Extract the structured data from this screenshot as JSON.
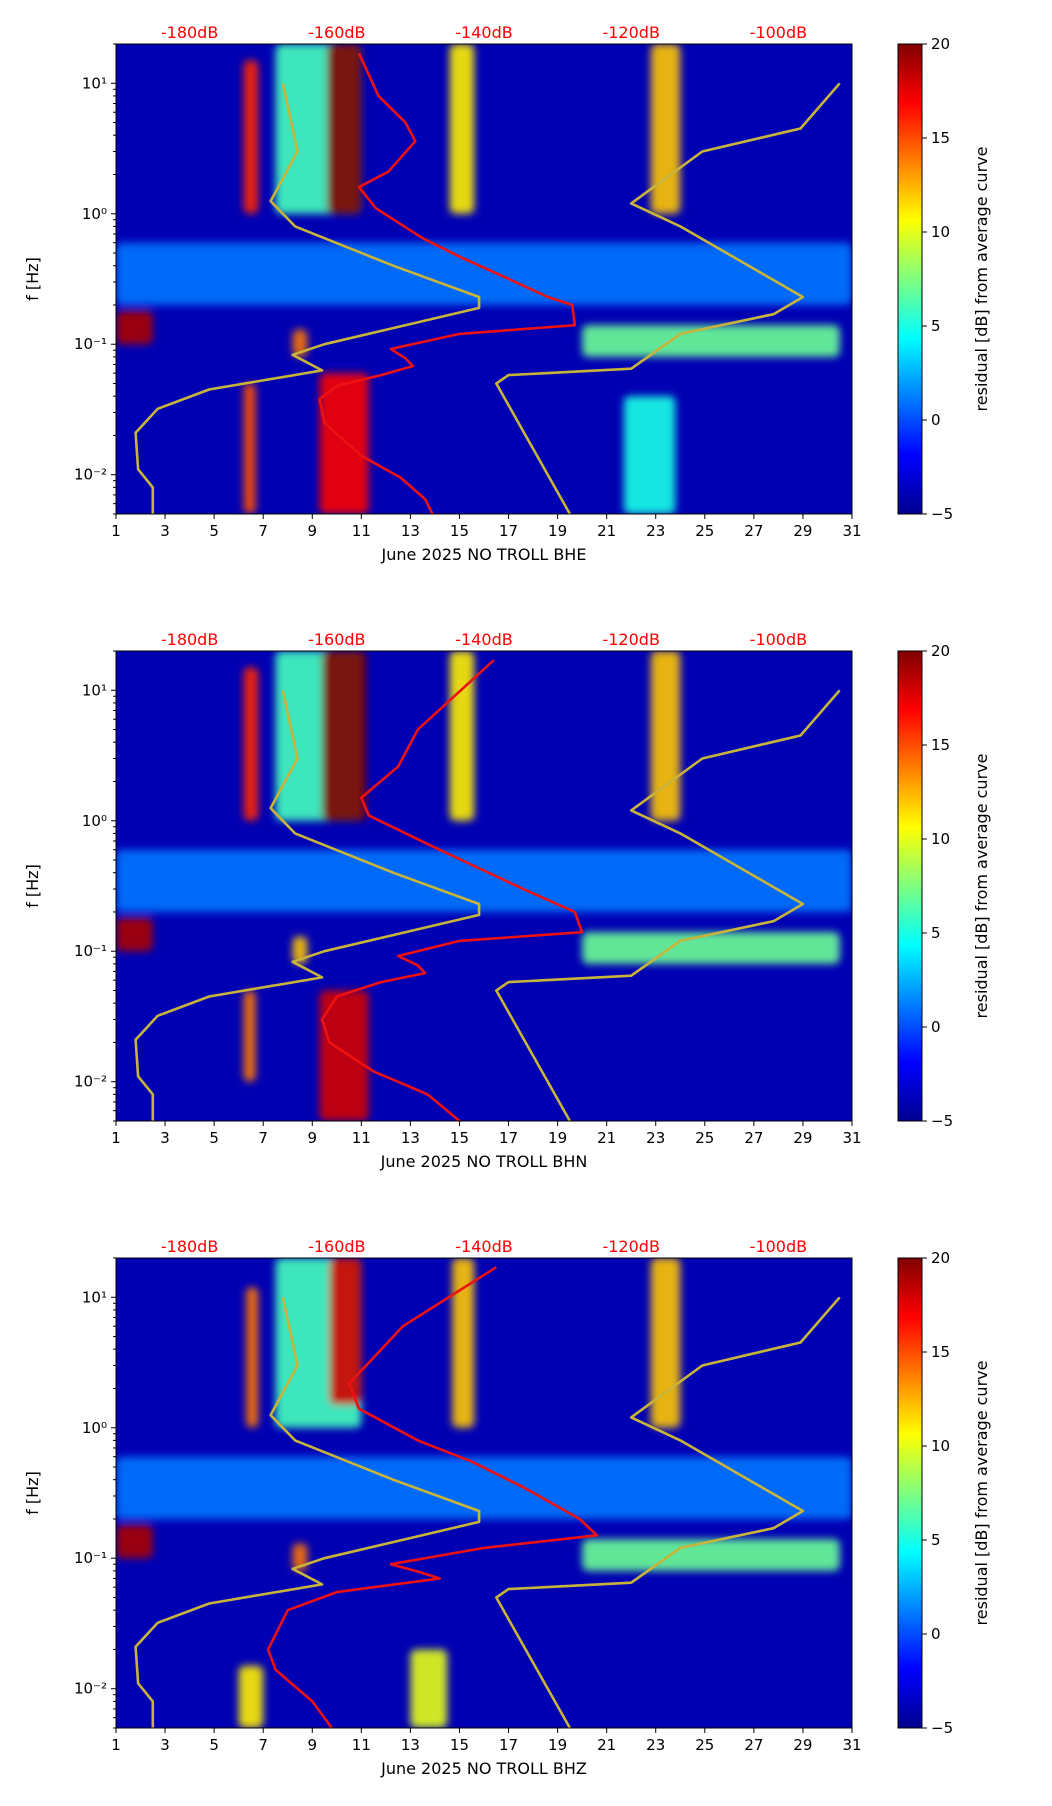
{
  "figure_title": "",
  "colorbar": {
    "label": "residual [dB] from average curve",
    "ticks": [
      -5,
      0,
      5,
      10,
      15,
      20
    ],
    "range": [
      -5,
      20
    ],
    "colormap": "jet"
  },
  "colors": {
    "red_curve": "#ee1111",
    "yellow_curve": "#c8b43a",
    "top_label": "#ff0000",
    "background_low": "#00008f",
    "background_high": "#800000"
  },
  "chart_data": [
    {
      "type": "heatmap",
      "id": "bhe",
      "title": "",
      "xlabel": "June 2025 NO TROLL  BHE",
      "ylabel": "f [Hz]",
      "xlim": [
        1,
        31
      ],
      "ylim": [
        0.005,
        20
      ],
      "yscale": "log",
      "xticks": [
        1,
        3,
        5,
        7,
        9,
        11,
        13,
        15,
        17,
        19,
        21,
        23,
        25,
        27,
        29,
        31
      ],
      "yticks": [
        {
          "value": 0.01,
          "label": "10⁻²"
        },
        {
          "value": 0.1,
          "label": "10⁻¹"
        },
        {
          "value": 1,
          "label": "10⁰"
        },
        {
          "value": 10,
          "label": "10¹"
        }
      ],
      "top_db_labels": [
        {
          "x": 4.0,
          "label": "-180dB"
        },
        {
          "x": 10.0,
          "label": "-160dB"
        },
        {
          "x": 16.0,
          "label": "-140dB"
        },
        {
          "x": 22.0,
          "label": "-120dB"
        },
        {
          "x": 28.0,
          "label": "-100dB"
        }
      ],
      "hotspots": [
        {
          "x": [
            9.6,
            11.0
          ],
          "f": [
            1.0,
            20
          ],
          "level": 20
        },
        {
          "x": [
            9.3,
            11.3
          ],
          "f": [
            0.005,
            0.06
          ],
          "level": 17
        },
        {
          "x": [
            6.2,
            6.8
          ],
          "f": [
            1.0,
            15
          ],
          "level": 16
        },
        {
          "x": [
            6.2,
            6.7
          ],
          "f": [
            0.005,
            0.05
          ],
          "level": 15
        },
        {
          "x": [
            14.6,
            15.6
          ],
          "f": [
            1.0,
            20
          ],
          "level": 11
        },
        {
          "x": [
            22.8,
            24.0
          ],
          "f": [
            1.0,
            20
          ],
          "level": 12
        },
        {
          "x": [
            1.0,
            2.5
          ],
          "f": [
            0.1,
            0.18
          ],
          "level": 19
        },
        {
          "x": [
            8.2,
            8.8
          ],
          "f": [
            0.08,
            0.13
          ],
          "level": 14
        },
        {
          "x": [
            20.0,
            30.5
          ],
          "f": [
            0.08,
            0.14
          ],
          "level": 7
        },
        {
          "x": [
            21.7,
            23.8
          ],
          "f": [
            0.005,
            0.04
          ],
          "level": 5
        },
        {
          "x": [
            1.0,
            31.0
          ],
          "f": [
            0.2,
            0.6
          ],
          "level": 1
        },
        {
          "x": [
            7.5,
            11.0
          ],
          "f": [
            1.0,
            20
          ],
          "level": 6
        }
      ],
      "red_curve": [
        [
          10.9,
          17
        ],
        [
          11.7,
          8
        ],
        [
          12.8,
          5
        ],
        [
          13.2,
          3.6
        ],
        [
          12.1,
          2.1
        ],
        [
          10.9,
          1.6
        ],
        [
          11.6,
          1.1
        ],
        [
          13.5,
          0.65
        ],
        [
          15.1,
          0.46
        ],
        [
          16.8,
          0.33
        ],
        [
          18.6,
          0.23
        ],
        [
          19.6,
          0.2
        ],
        [
          19.7,
          0.14
        ],
        [
          15.0,
          0.12
        ],
        [
          12.2,
          0.092
        ],
        [
          12.8,
          0.078
        ],
        [
          13.1,
          0.068
        ],
        [
          11.8,
          0.058
        ],
        [
          10.0,
          0.048
        ],
        [
          9.3,
          0.038
        ],
        [
          9.5,
          0.025
        ],
        [
          11.0,
          0.014
        ],
        [
          12.6,
          0.0095
        ],
        [
          13.6,
          0.0065
        ],
        [
          13.9,
          0.005
        ]
      ],
      "yellow_curve": [
        [
          7.8,
          10
        ],
        [
          8.4,
          3.0
        ],
        [
          7.3,
          1.25
        ],
        [
          8.3,
          0.8
        ],
        [
          12.3,
          0.4
        ],
        [
          15.8,
          0.23
        ],
        [
          15.8,
          0.19
        ],
        [
          9.5,
          0.1
        ],
        [
          8.2,
          0.083
        ],
        [
          9.4,
          0.063
        ],
        [
          4.8,
          0.045
        ],
        [
          2.7,
          0.032
        ],
        [
          1.8,
          0.021
        ],
        [
          1.9,
          0.011
        ],
        [
          2.5,
          0.008
        ],
        [
          2.5,
          0.005
        ]
      ],
      "yellow_curve_2": [
        [
          30.5,
          10
        ],
        [
          28.9,
          4.5
        ],
        [
          24.9,
          3.0
        ],
        [
          22.0,
          1.2
        ],
        [
          24.0,
          0.8
        ],
        [
          29.0,
          0.23
        ],
        [
          27.8,
          0.17
        ],
        [
          24.0,
          0.12
        ],
        [
          22.0,
          0.065
        ],
        [
          17.0,
          0.058
        ],
        [
          16.5,
          0.05
        ],
        [
          19.5,
          0.005
        ]
      ]
    },
    {
      "type": "heatmap",
      "id": "bhn",
      "title": "",
      "xlabel": "June 2025 NO TROLL  BHN",
      "ylabel": "f [Hz]",
      "xlim": [
        1,
        31
      ],
      "ylim": [
        0.005,
        20
      ],
      "yscale": "log",
      "xticks": [
        1,
        3,
        5,
        7,
        9,
        11,
        13,
        15,
        17,
        19,
        21,
        23,
        25,
        27,
        29,
        31
      ],
      "yticks": [
        {
          "value": 0.01,
          "label": "10⁻²"
        },
        {
          "value": 0.1,
          "label": "10⁻¹"
        },
        {
          "value": 1,
          "label": "10⁰"
        },
        {
          "value": 10,
          "label": "10¹"
        }
      ],
      "top_db_labels": [
        {
          "x": 4.0,
          "label": "-180dB"
        },
        {
          "x": 10.0,
          "label": "-160dB"
        },
        {
          "x": 16.0,
          "label": "-140dB"
        },
        {
          "x": 22.0,
          "label": "-120dB"
        },
        {
          "x": 28.0,
          "label": "-100dB"
        }
      ],
      "hotspots": [
        {
          "x": [
            9.4,
            11.2
          ],
          "f": [
            1.0,
            20
          ],
          "level": 20
        },
        {
          "x": [
            9.3,
            11.3
          ],
          "f": [
            0.005,
            0.05
          ],
          "level": 18
        },
        {
          "x": [
            6.2,
            6.8
          ],
          "f": [
            1.0,
            15
          ],
          "level": 16
        },
        {
          "x": [
            6.2,
            6.7
          ],
          "f": [
            0.01,
            0.05
          ],
          "level": 14
        },
        {
          "x": [
            14.6,
            15.6
          ],
          "f": [
            1.0,
            20
          ],
          "level": 11
        },
        {
          "x": [
            22.8,
            24.0
          ],
          "f": [
            1.0,
            20
          ],
          "level": 12
        },
        {
          "x": [
            1.0,
            2.5
          ],
          "f": [
            0.1,
            0.18
          ],
          "level": 19
        },
        {
          "x": [
            8.2,
            8.8
          ],
          "f": [
            0.08,
            0.13
          ],
          "level": 12
        },
        {
          "x": [
            20.0,
            30.5
          ],
          "f": [
            0.08,
            0.14
          ],
          "level": 7
        },
        {
          "x": [
            1.0,
            31.0
          ],
          "f": [
            0.2,
            0.6
          ],
          "level": 1
        },
        {
          "x": [
            7.5,
            11.0
          ],
          "f": [
            1.0,
            20
          ],
          "level": 6
        }
      ],
      "red_curve": [
        [
          16.4,
          17
        ],
        [
          13.3,
          5
        ],
        [
          12.5,
          2.6
        ],
        [
          11.0,
          1.5
        ],
        [
          11.3,
          1.1
        ],
        [
          13.8,
          0.65
        ],
        [
          15.6,
          0.45
        ],
        [
          17.6,
          0.3
        ],
        [
          19.7,
          0.2
        ],
        [
          20.0,
          0.14
        ],
        [
          15.0,
          0.12
        ],
        [
          12.5,
          0.092
        ],
        [
          13.3,
          0.078
        ],
        [
          13.6,
          0.068
        ],
        [
          11.8,
          0.058
        ],
        [
          10.0,
          0.045
        ],
        [
          9.4,
          0.03
        ],
        [
          9.7,
          0.02
        ],
        [
          11.5,
          0.012
        ],
        [
          13.7,
          0.008
        ],
        [
          15.0,
          0.005
        ]
      ],
      "yellow_curve": [
        [
          7.8,
          10
        ],
        [
          8.4,
          3.0
        ],
        [
          7.3,
          1.25
        ],
        [
          8.3,
          0.8
        ],
        [
          12.3,
          0.4
        ],
        [
          15.8,
          0.23
        ],
        [
          15.8,
          0.19
        ],
        [
          9.5,
          0.1
        ],
        [
          8.2,
          0.083
        ],
        [
          9.4,
          0.063
        ],
        [
          4.8,
          0.045
        ],
        [
          2.7,
          0.032
        ],
        [
          1.8,
          0.021
        ],
        [
          1.9,
          0.011
        ],
        [
          2.5,
          0.008
        ],
        [
          2.5,
          0.005
        ]
      ],
      "yellow_curve_2": [
        [
          30.5,
          10
        ],
        [
          28.9,
          4.5
        ],
        [
          24.9,
          3.0
        ],
        [
          22.0,
          1.2
        ],
        [
          24.0,
          0.8
        ],
        [
          29.0,
          0.23
        ],
        [
          27.8,
          0.17
        ],
        [
          24.0,
          0.12
        ],
        [
          22.0,
          0.065
        ],
        [
          17.0,
          0.058
        ],
        [
          16.5,
          0.05
        ],
        [
          19.5,
          0.005
        ]
      ]
    },
    {
      "type": "heatmap",
      "id": "bhz",
      "title": "",
      "xlabel": "June 2025 NO TROLL  BHZ",
      "ylabel": "f [Hz]",
      "xlim": [
        1,
        31
      ],
      "ylim": [
        0.005,
        20
      ],
      "yscale": "log",
      "xticks": [
        1,
        3,
        5,
        7,
        9,
        11,
        13,
        15,
        17,
        19,
        21,
        23,
        25,
        27,
        29,
        31
      ],
      "yticks": [
        {
          "value": 0.01,
          "label": "10⁻²"
        },
        {
          "value": 0.1,
          "label": "10⁻¹"
        },
        {
          "value": 1,
          "label": "10⁰"
        },
        {
          "value": 10,
          "label": "10¹"
        }
      ],
      "top_db_labels": [
        {
          "x": 4.0,
          "label": "-180dB"
        },
        {
          "x": 10.0,
          "label": "-160dB"
        },
        {
          "x": 16.0,
          "label": "-140dB"
        },
        {
          "x": 22.0,
          "label": "-120dB"
        },
        {
          "x": 28.0,
          "label": "-100dB"
        }
      ],
      "hotspots": [
        {
          "x": [
            9.7,
            11.0
          ],
          "f": [
            1.5,
            20
          ],
          "level": 18
        },
        {
          "x": [
            14.7,
            15.6
          ],
          "f": [
            1.0,
            20
          ],
          "level": 12
        },
        {
          "x": [
            22.8,
            24.0
          ],
          "f": [
            1.0,
            20
          ],
          "level": 12
        },
        {
          "x": [
            6.3,
            6.8
          ],
          "f": [
            1.0,
            12
          ],
          "level": 14
        },
        {
          "x": [
            1.0,
            2.5
          ],
          "f": [
            0.1,
            0.18
          ],
          "level": 19
        },
        {
          "x": [
            8.2,
            8.8
          ],
          "f": [
            0.08,
            0.13
          ],
          "level": 14
        },
        {
          "x": [
            20.0,
            30.5
          ],
          "f": [
            0.08,
            0.14
          ],
          "level": 7
        },
        {
          "x": [
            13.0,
            14.5
          ],
          "f": [
            0.005,
            0.02
          ],
          "level": 10
        },
        {
          "x": [
            6.0,
            7.0
          ],
          "f": [
            0.005,
            0.015
          ],
          "level": 11
        },
        {
          "x": [
            1.0,
            31.0
          ],
          "f": [
            0.2,
            0.6
          ],
          "level": 1
        },
        {
          "x": [
            7.5,
            11.0
          ],
          "f": [
            1.0,
            20
          ],
          "level": 6
        }
      ],
      "red_curve": [
        [
          16.5,
          17
        ],
        [
          12.7,
          6
        ],
        [
          11.2,
          3.0
        ],
        [
          10.5,
          2.2
        ],
        [
          10.9,
          1.4
        ],
        [
          13.3,
          0.8
        ],
        [
          15.5,
          0.55
        ],
        [
          17.6,
          0.35
        ],
        [
          19.9,
          0.2
        ],
        [
          20.6,
          0.15
        ],
        [
          16.0,
          0.12
        ],
        [
          12.2,
          0.09
        ],
        [
          13.4,
          0.078
        ],
        [
          14.2,
          0.07
        ],
        [
          10.0,
          0.055
        ],
        [
          8.0,
          0.04
        ],
        [
          7.2,
          0.02
        ],
        [
          7.5,
          0.014
        ],
        [
          9.0,
          0.008
        ],
        [
          9.8,
          0.005
        ]
      ],
      "yellow_curve": [
        [
          7.8,
          10
        ],
        [
          8.4,
          3.0
        ],
        [
          7.3,
          1.25
        ],
        [
          8.3,
          0.8
        ],
        [
          12.3,
          0.4
        ],
        [
          15.8,
          0.23
        ],
        [
          15.8,
          0.19
        ],
        [
          9.5,
          0.1
        ],
        [
          8.2,
          0.083
        ],
        [
          9.4,
          0.063
        ],
        [
          4.8,
          0.045
        ],
        [
          2.7,
          0.032
        ],
        [
          1.8,
          0.021
        ],
        [
          1.9,
          0.011
        ],
        [
          2.5,
          0.008
        ],
        [
          2.5,
          0.005
        ]
      ],
      "yellow_curve_2": [
        [
          30.5,
          10
        ],
        [
          28.9,
          4.5
        ],
        [
          24.9,
          3.0
        ],
        [
          22.0,
          1.2
        ],
        [
          24.0,
          0.8
        ],
        [
          29.0,
          0.23
        ],
        [
          27.8,
          0.17
        ],
        [
          24.0,
          0.12
        ],
        [
          22.0,
          0.065
        ],
        [
          17.0,
          0.058
        ],
        [
          16.5,
          0.05
        ],
        [
          19.5,
          0.005
        ]
      ]
    }
  ]
}
